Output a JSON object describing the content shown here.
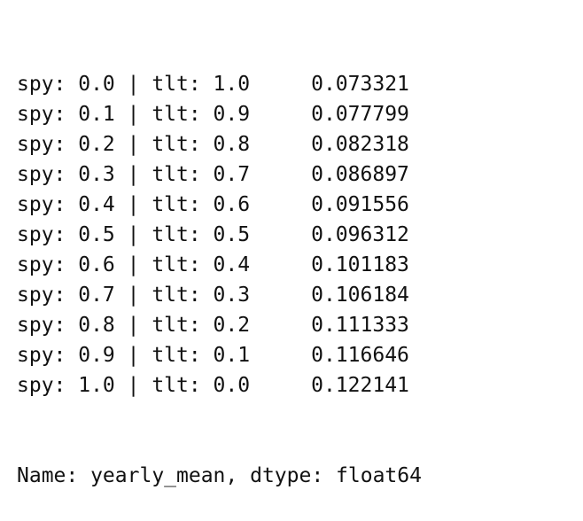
{
  "output": {
    "rows": [
      {
        "left": "spy: 0.0 | tlt: 1.0",
        "value": "0.073321"
      },
      {
        "left": "spy: 0.1 | tlt: 0.9",
        "value": "0.077799"
      },
      {
        "left": "spy: 0.2 | tlt: 0.8",
        "value": "0.082318"
      },
      {
        "left": "spy: 0.3 | tlt: 0.7",
        "value": "0.086897"
      },
      {
        "left": "spy: 0.4 | tlt: 0.6",
        "value": "0.091556"
      },
      {
        "left": "spy: 0.5 | tlt: 0.5",
        "value": "0.096312"
      },
      {
        "left": "spy: 0.6 | tlt: 0.4",
        "value": "0.101183"
      },
      {
        "left": "spy: 0.7 | tlt: 0.3",
        "value": "0.106184"
      },
      {
        "left": "spy: 0.8 | tlt: 0.2",
        "value": "0.111333"
      },
      {
        "left": "spy: 0.9 | tlt: 0.1",
        "value": "0.116646"
      },
      {
        "left": "spy: 1.0 | tlt: 0.0",
        "value": "0.122141"
      }
    ],
    "footer": "Name: yearly_mean, dtype: float64"
  }
}
